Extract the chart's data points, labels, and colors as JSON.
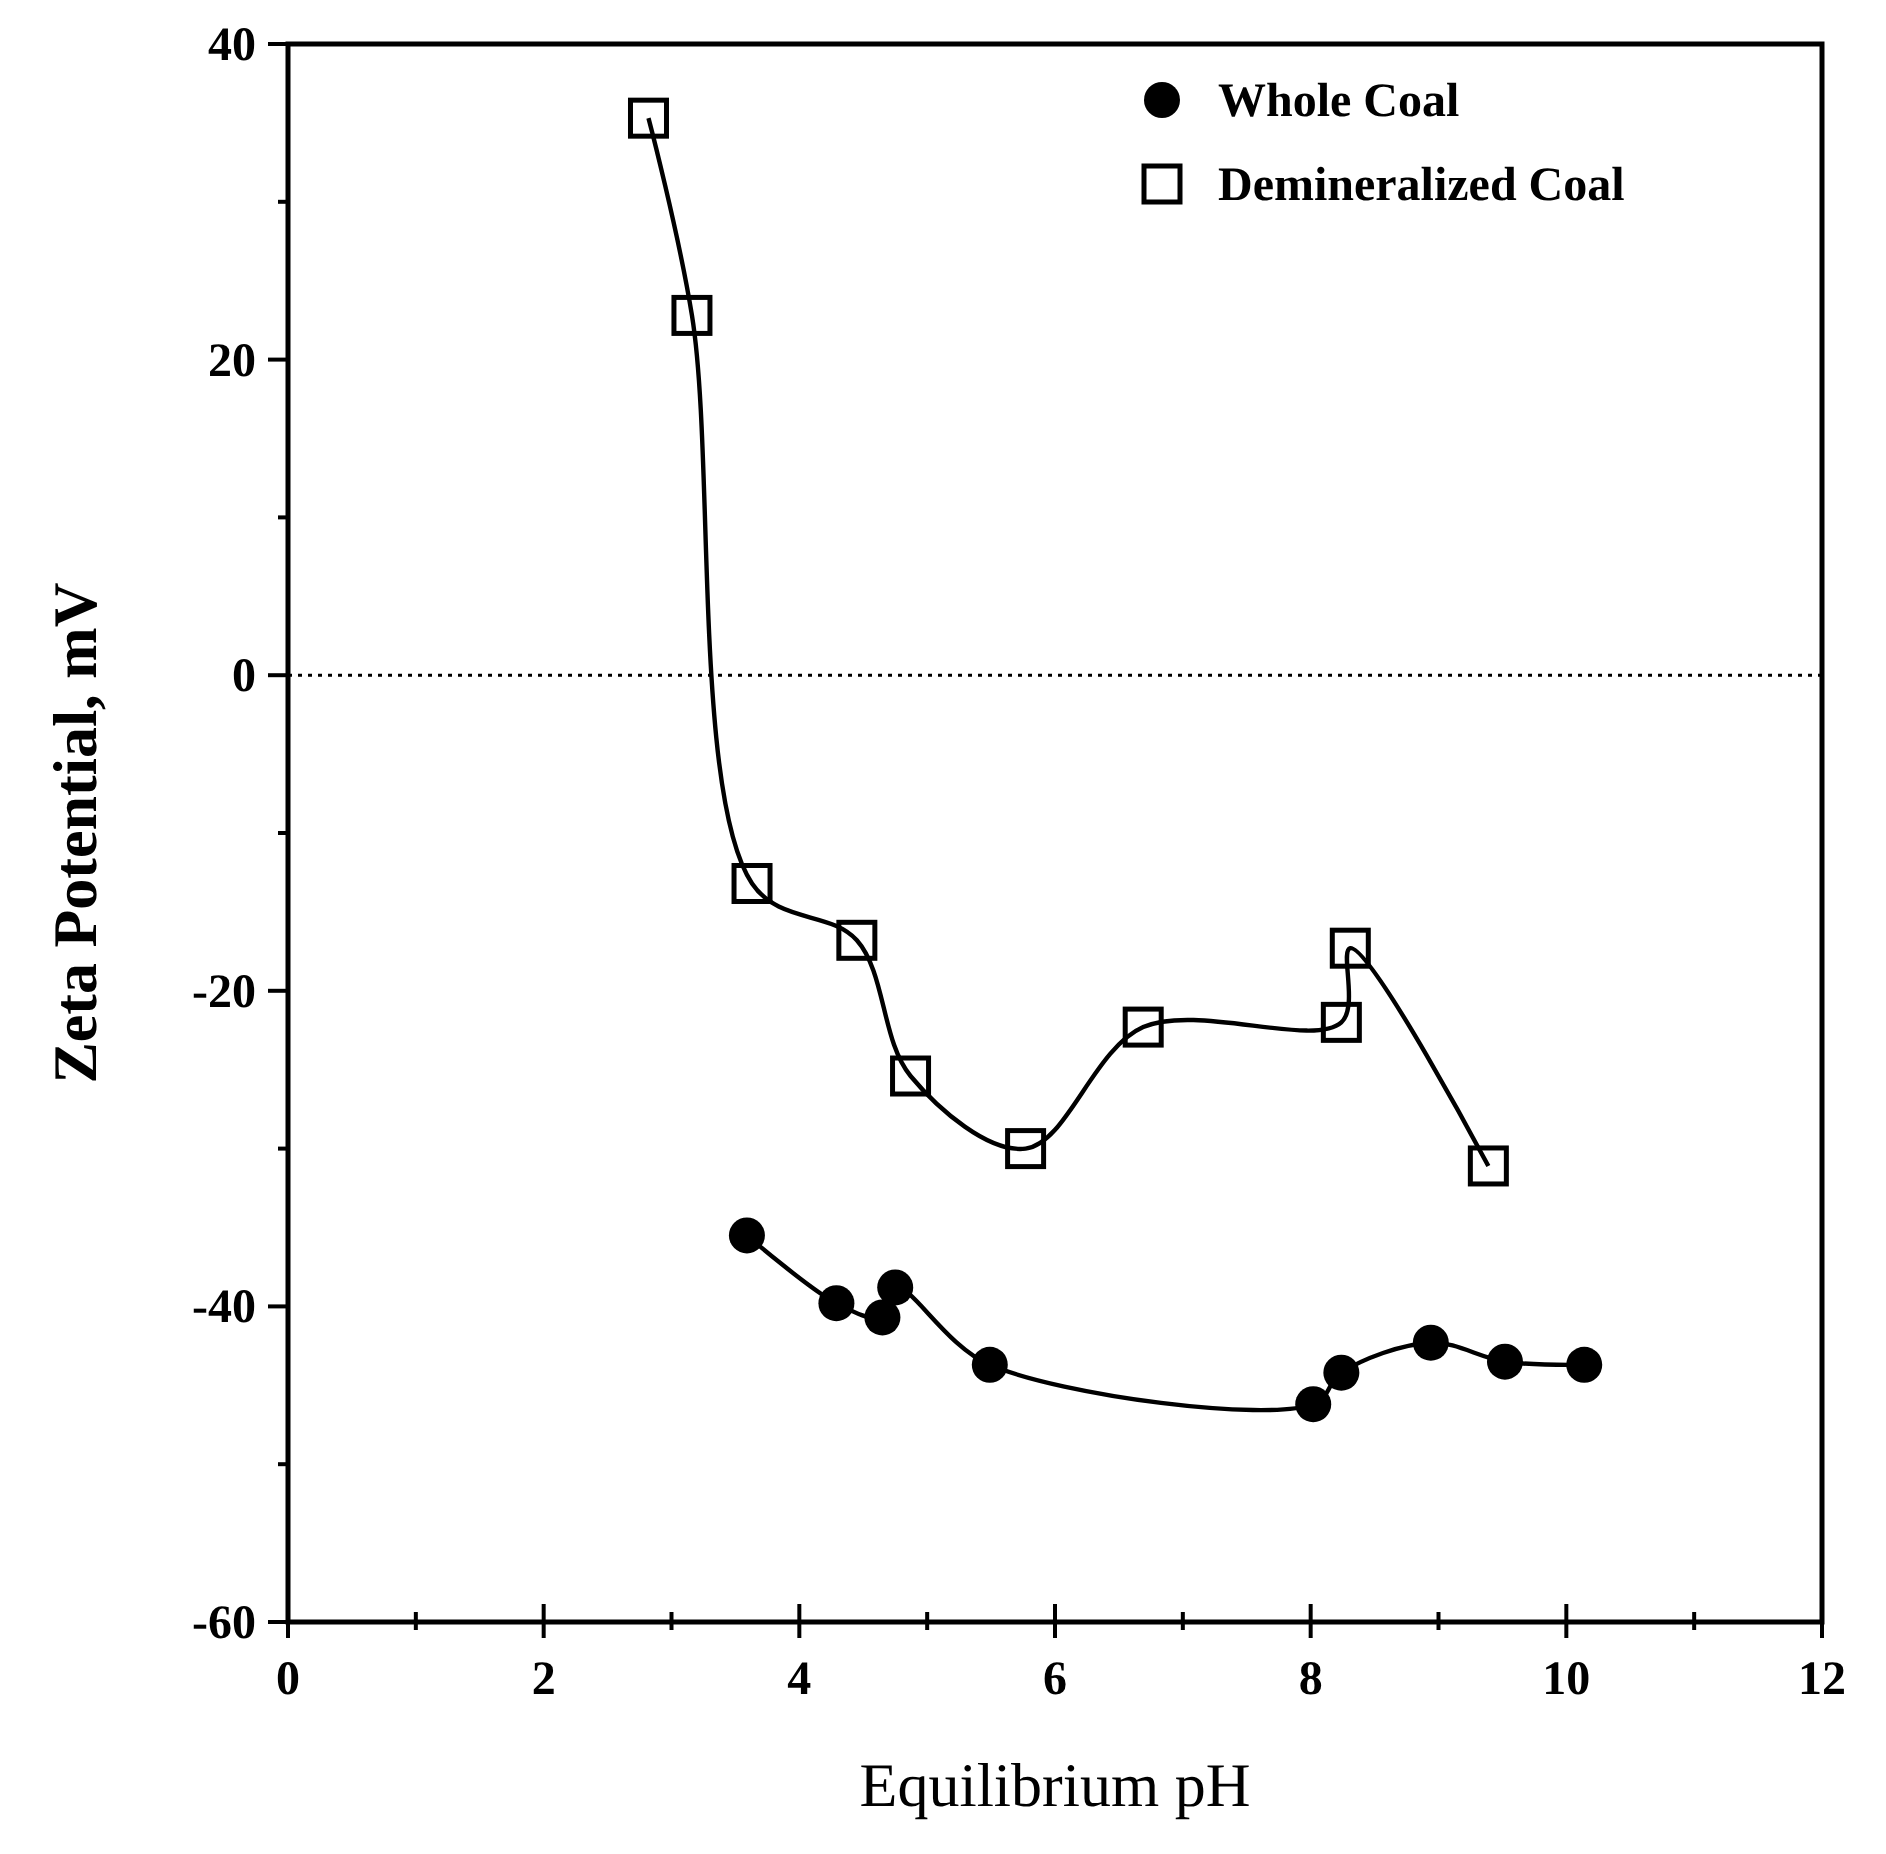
{
  "chart_data": {
    "type": "line",
    "xlabel": "Equilibrium pH",
    "ylabel": "Zeta Potential, mV",
    "xlim": [
      0,
      12
    ],
    "ylim": [
      -60,
      40
    ],
    "xticks": [
      0,
      {
        "value": 1,
        "label": null
      },
      2,
      {
        "value": 3,
        "label": null
      },
      4,
      {
        "value": 5,
        "label": null
      },
      6,
      {
        "value": 7,
        "label": null
      },
      8,
      {
        "value": 9,
        "label": null
      },
      10,
      {
        "value": 11,
        "label": null
      },
      12
    ],
    "yticks": [
      -60,
      {
        "value": -50,
        "label": null
      },
      -40,
      {
        "value": -30,
        "label": null
      },
      -20,
      {
        "value": -10,
        "label": null
      },
      0,
      {
        "value": 10,
        "label": null
      },
      20,
      {
        "value": 30,
        "label": null
      },
      40
    ],
    "grid": false,
    "legend": "top right",
    "line_style": "solid",
    "ref_lines": [
      {
        "axis": "y",
        "value": 0,
        "line_style": "dotted"
      }
    ],
    "series": [
      {
        "name": "Whole Coal",
        "color": "#000000",
        "marker": "circle",
        "x": [
          3.59,
          4.29,
          4.65,
          4.75,
          5.49,
          8.02,
          8.24,
          8.94,
          9.52,
          10.14
        ],
        "values": [
          -35.5,
          -39.8,
          -40.7,
          -38.8,
          -43.7,
          -46.2,
          -44.2,
          -42.3,
          -43.5,
          -43.7
        ]
      },
      {
        "name": "Demineralized Coal",
        "color": "#000000",
        "marker": "square",
        "x": [
          2.82,
          3.16,
          3.63,
          4.45,
          4.87,
          5.77,
          6.69,
          8.24,
          8.31,
          9.39
        ],
        "values": [
          35.3,
          22.8,
          -13.2,
          -16.8,
          -25.4,
          -30,
          -22.3,
          -22,
          -17.3,
          -31.1
        ]
      }
    ]
  }
}
